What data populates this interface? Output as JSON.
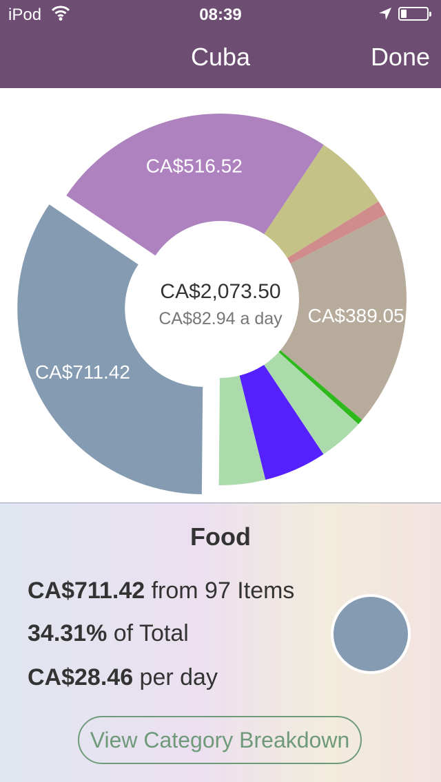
{
  "status_bar": {
    "carrier": "iPod",
    "time": "08:39"
  },
  "nav": {
    "title": "Cuba",
    "done_label": "Done"
  },
  "chart_data": {
    "type": "pie",
    "style": "donut",
    "center_total": "CA$2,073.50",
    "center_per_day": "CA$82.94 a day",
    "slices": [
      {
        "label": "CA$711.42",
        "value": 711.42,
        "color": "#849bb1",
        "selected": true,
        "show_label": true
      },
      {
        "label": "CA$516.52",
        "value": 516.52,
        "color": "#ae82bf",
        "show_label": true
      },
      {
        "label": "",
        "value": 141.0,
        "color": "#c5c288",
        "show_label": false
      },
      {
        "label": "",
        "value": 27.0,
        "color": "#d08b8b",
        "show_label": false
      },
      {
        "label": "CA$389.05",
        "value": 389.05,
        "color": "#b7ac9c",
        "show_label": true
      },
      {
        "label": "",
        "value": 10.0,
        "color": "#2db91c",
        "show_label": false
      },
      {
        "label": "",
        "value": 82.0,
        "color": "#abdaab",
        "show_label": false
      },
      {
        "label": "",
        "value": 113.0,
        "color": "#5522ff",
        "show_label": false
      },
      {
        "label": "",
        "value": 83.46,
        "color": "#abdaab",
        "show_label": false
      }
    ]
  },
  "detail": {
    "category": "Food",
    "amount": "CA$711.42",
    "amount_suffix": " from 97 Items",
    "percent": "34.31%",
    "percent_suffix": " of Total",
    "per_day": "CA$28.46",
    "per_day_suffix": " per day",
    "swatch_color": "#849bb1",
    "button_label": "View Category Breakdown"
  }
}
